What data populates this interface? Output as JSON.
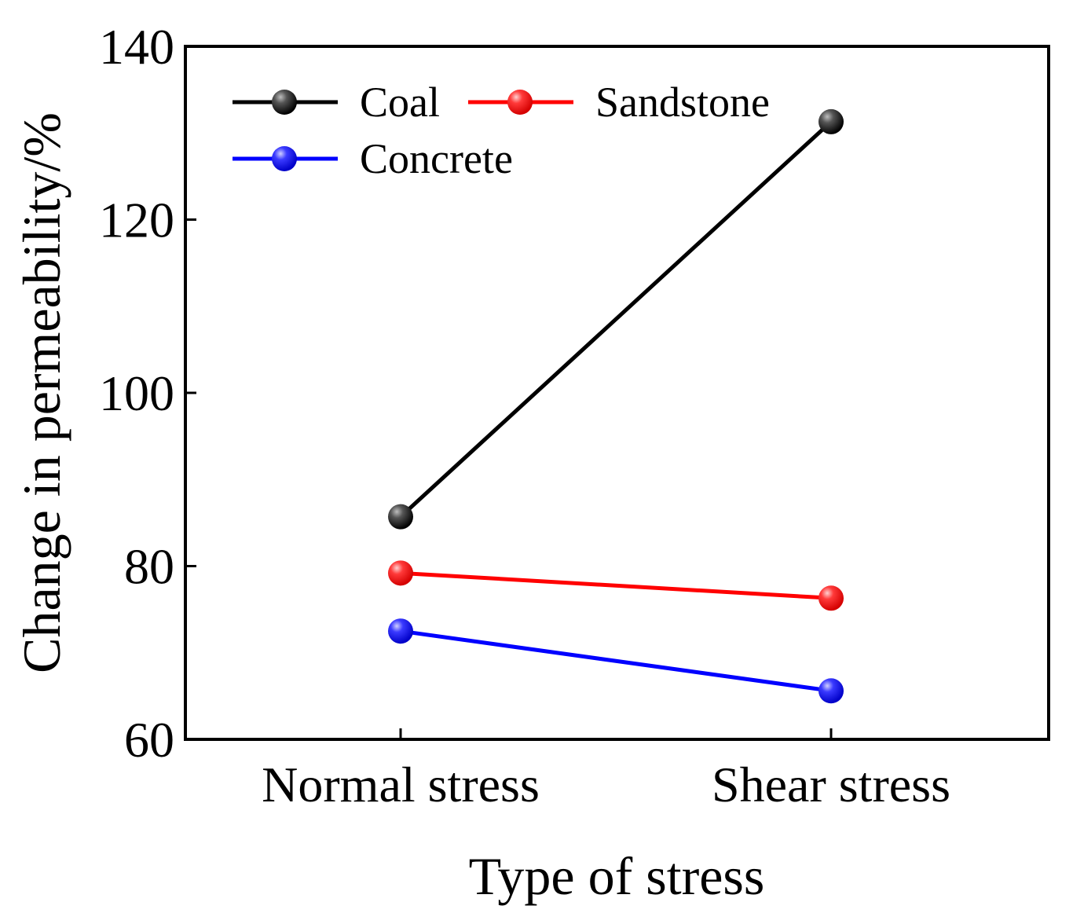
{
  "chart_data": {
    "type": "line",
    "title": "",
    "xlabel": "Type of stress",
    "ylabel": "Change in permeability/%",
    "categories": [
      "Normal stress",
      "Shear stress"
    ],
    "ylim": [
      60,
      140
    ],
    "yticks": [
      60,
      80,
      100,
      120,
      140
    ],
    "grid": false,
    "legend_position": "top-left",
    "series": [
      {
        "name": "Coal",
        "color": "#000000",
        "values": [
          85.7,
          131.3
        ]
      },
      {
        "name": "Sandstone",
        "color": "#ff0000",
        "values": [
          79.2,
          76.3
        ]
      },
      {
        "name": "Concrete",
        "color": "#0000ff",
        "values": [
          72.5,
          65.6
        ]
      }
    ]
  }
}
